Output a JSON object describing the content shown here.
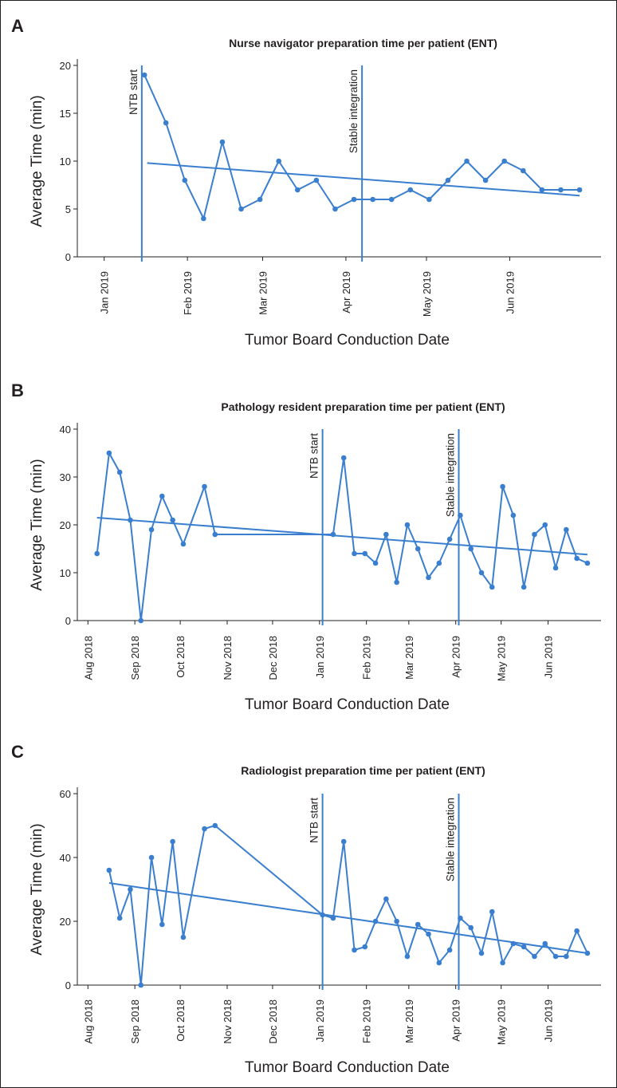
{
  "colors": {
    "series": "#3a7fcf",
    "axis": "#231f20",
    "background": "#ffffff"
  },
  "chart_data": [
    {
      "panel": "A",
      "type": "line",
      "title": "Nurse navigator preparation time per patient (ENT)",
      "xlabel": "Tumor Board Conduction Date",
      "ylabel": "Average Time (min)",
      "ylim": [
        0,
        20
      ],
      "yticks": [
        0,
        5,
        10,
        15,
        20
      ],
      "xlim": [
        "2018-12-22",
        "2019-07-05"
      ],
      "xticks": [
        {
          "date": "2019-01-01",
          "label": "Jan 2019"
        },
        {
          "date": "2019-02-01",
          "label": "Feb 2019"
        },
        {
          "date": "2019-03-01",
          "label": "Mar 2019"
        },
        {
          "date": "2019-04-01",
          "label": "Apr 2019"
        },
        {
          "date": "2019-05-01",
          "label": "May 2019"
        },
        {
          "date": "2019-06-01",
          "label": "Jun 2019"
        }
      ],
      "markers": [
        {
          "date": "2019-01-15",
          "label": "NTB start"
        },
        {
          "date": "2019-04-07",
          "label": "Stable integration"
        }
      ],
      "series": [
        {
          "name": "Average time",
          "points": [
            [
              "2019-01-16",
              19
            ],
            [
              "2019-01-24",
              14
            ],
            [
              "2019-01-31",
              8
            ],
            [
              "2019-02-07",
              4
            ],
            [
              "2019-02-14",
              12
            ],
            [
              "2019-02-21",
              5
            ],
            [
              "2019-02-28",
              6
            ],
            [
              "2019-03-07",
              10
            ],
            [
              "2019-03-14",
              7
            ],
            [
              "2019-03-21",
              8
            ],
            [
              "2019-03-28",
              5
            ],
            [
              "2019-04-04",
              6
            ],
            [
              "2019-04-11",
              6
            ],
            [
              "2019-04-18",
              6
            ],
            [
              "2019-04-25",
              7
            ],
            [
              "2019-05-02",
              6
            ],
            [
              "2019-05-09",
              8
            ],
            [
              "2019-05-16",
              10
            ],
            [
              "2019-05-23",
              8
            ],
            [
              "2019-05-30",
              10
            ],
            [
              "2019-06-06",
              9
            ],
            [
              "2019-06-13",
              7
            ],
            [
              "2019-06-20",
              7
            ],
            [
              "2019-06-27",
              7
            ]
          ]
        }
      ],
      "trend": [
        [
          "2019-01-17",
          9.8
        ],
        [
          "2019-06-27",
          6.4
        ]
      ]
    },
    {
      "panel": "B",
      "type": "line",
      "title": "Pathology resident preparation time per patient (ENT)",
      "xlabel": "Tumor Board Conduction Date",
      "ylabel": "Average Time (min)",
      "ylim": [
        0,
        40
      ],
      "yticks": [
        0,
        10,
        20,
        30,
        40
      ],
      "xlim": [
        "2018-07-25",
        "2019-07-06"
      ],
      "xticks": [
        {
          "date": "2018-08-01",
          "label": "Aug 2018"
        },
        {
          "date": "2018-09-01",
          "label": "Sep 2018"
        },
        {
          "date": "2018-10-01",
          "label": "Oct 2018"
        },
        {
          "date": "2018-11-01",
          "label": "Nov 2018"
        },
        {
          "date": "2018-12-01",
          "label": "Dec 2018"
        },
        {
          "date": "2019-01-01",
          "label": "Jan 2019"
        },
        {
          "date": "2019-02-01",
          "label": "Feb 2019"
        },
        {
          "date": "2019-03-01",
          "label": "Mar 2019"
        },
        {
          "date": "2019-04-01",
          "label": "Apr 2019"
        },
        {
          "date": "2019-05-01",
          "label": "May 2019"
        },
        {
          "date": "2019-06-01",
          "label": "Jun 2019"
        }
      ],
      "markers": [
        {
          "date": "2019-01-03",
          "label": "NTB start"
        },
        {
          "date": "2019-04-03",
          "label": "Stable integration"
        }
      ],
      "series": [
        {
          "name": "Average time",
          "points": [
            [
              "2018-08-07",
              14
            ],
            [
              "2018-08-15",
              35
            ],
            [
              "2018-08-22",
              31
            ],
            [
              "2018-08-29",
              21
            ],
            [
              "2018-09-05",
              0
            ],
            [
              "2018-09-12",
              19
            ],
            [
              "2018-09-19",
              26
            ],
            [
              "2018-09-26",
              21
            ],
            [
              "2018-10-03",
              16
            ],
            [
              "2018-10-17",
              28
            ],
            [
              "2018-10-24",
              18
            ],
            [
              "2019-01-10",
              18
            ],
            [
              "2019-01-17",
              34
            ],
            [
              "2019-01-24",
              14
            ],
            [
              "2019-01-31",
              14
            ],
            [
              "2019-02-07",
              12
            ],
            [
              "2019-02-14",
              18
            ],
            [
              "2019-02-21",
              8
            ],
            [
              "2019-02-28",
              20
            ],
            [
              "2019-03-07",
              15
            ],
            [
              "2019-03-14",
              9
            ],
            [
              "2019-03-21",
              12
            ],
            [
              "2019-03-28",
              17
            ],
            [
              "2019-04-04",
              22
            ],
            [
              "2019-04-11",
              15
            ],
            [
              "2019-04-18",
              10
            ],
            [
              "2019-04-25",
              7
            ],
            [
              "2019-05-02",
              28
            ],
            [
              "2019-05-09",
              22
            ],
            [
              "2019-05-16",
              7
            ],
            [
              "2019-05-23",
              18
            ],
            [
              "2019-05-30",
              20
            ],
            [
              "2019-06-06",
              11
            ],
            [
              "2019-06-13",
              19
            ],
            [
              "2019-06-20",
              13
            ],
            [
              "2019-06-27",
              12
            ]
          ]
        }
      ],
      "trend": [
        [
          "2018-08-07",
          21.5
        ],
        [
          "2019-06-27",
          13.8
        ]
      ]
    },
    {
      "panel": "C",
      "type": "line",
      "title": "Radiologist preparation time per patient (ENT)",
      "xlabel": "Tumor Board Conduction Date",
      "ylabel": "Average Time (min)",
      "ylim": [
        0,
        60
      ],
      "yticks": [
        0,
        20,
        40,
        60
      ],
      "xlim": [
        "2018-07-25",
        "2019-07-06"
      ],
      "xticks": [
        {
          "date": "2018-08-01",
          "label": "Aug 2018"
        },
        {
          "date": "2018-09-01",
          "label": "Sep 2018"
        },
        {
          "date": "2018-10-01",
          "label": "Oct 2018"
        },
        {
          "date": "2018-11-01",
          "label": "Nov 2018"
        },
        {
          "date": "2018-12-01",
          "label": "Dec 2018"
        },
        {
          "date": "2019-01-01",
          "label": "Jan 2019"
        },
        {
          "date": "2019-02-01",
          "label": "Feb 2019"
        },
        {
          "date": "2019-03-01",
          "label": "Mar 2019"
        },
        {
          "date": "2019-04-01",
          "label": "Apr 2019"
        },
        {
          "date": "2019-05-01",
          "label": "May 2019"
        },
        {
          "date": "2019-06-01",
          "label": "Jun 2019"
        }
      ],
      "markers": [
        {
          "date": "2019-01-03",
          "label": "NTB start"
        },
        {
          "date": "2019-04-03",
          "label": "Stable integration"
        }
      ],
      "series": [
        {
          "name": "Average time",
          "points": [
            [
              "2018-08-15",
              36
            ],
            [
              "2018-08-22",
              21
            ],
            [
              "2018-08-29",
              30
            ],
            [
              "2018-09-05",
              0
            ],
            [
              "2018-09-12",
              40
            ],
            [
              "2018-09-19",
              19
            ],
            [
              "2018-09-26",
              45
            ],
            [
              "2018-10-03",
              15
            ],
            [
              "2018-10-17",
              49
            ],
            [
              "2018-10-24",
              50
            ],
            [
              "2019-01-03",
              22
            ],
            [
              "2019-01-10",
              21
            ],
            [
              "2019-01-17",
              45
            ],
            [
              "2019-01-24",
              11
            ],
            [
              "2019-01-31",
              12
            ],
            [
              "2019-02-07",
              20
            ],
            [
              "2019-02-14",
              27
            ],
            [
              "2019-02-21",
              20
            ],
            [
              "2019-02-28",
              9
            ],
            [
              "2019-03-07",
              19
            ],
            [
              "2019-03-14",
              16
            ],
            [
              "2019-03-21",
              7
            ],
            [
              "2019-03-28",
              11
            ],
            [
              "2019-04-04",
              21
            ],
            [
              "2019-04-11",
              18
            ],
            [
              "2019-04-18",
              10
            ],
            [
              "2019-04-25",
              23
            ],
            [
              "2019-05-02",
              7
            ],
            [
              "2019-05-09",
              13
            ],
            [
              "2019-05-16",
              12
            ],
            [
              "2019-05-23",
              9
            ],
            [
              "2019-05-30",
              13
            ],
            [
              "2019-06-06",
              9
            ],
            [
              "2019-06-13",
              9
            ],
            [
              "2019-06-20",
              17
            ],
            [
              "2019-06-27",
              10
            ]
          ]
        }
      ],
      "trend": [
        [
          "2018-08-15",
          32
        ],
        [
          "2019-06-27",
          10
        ]
      ]
    }
  ]
}
